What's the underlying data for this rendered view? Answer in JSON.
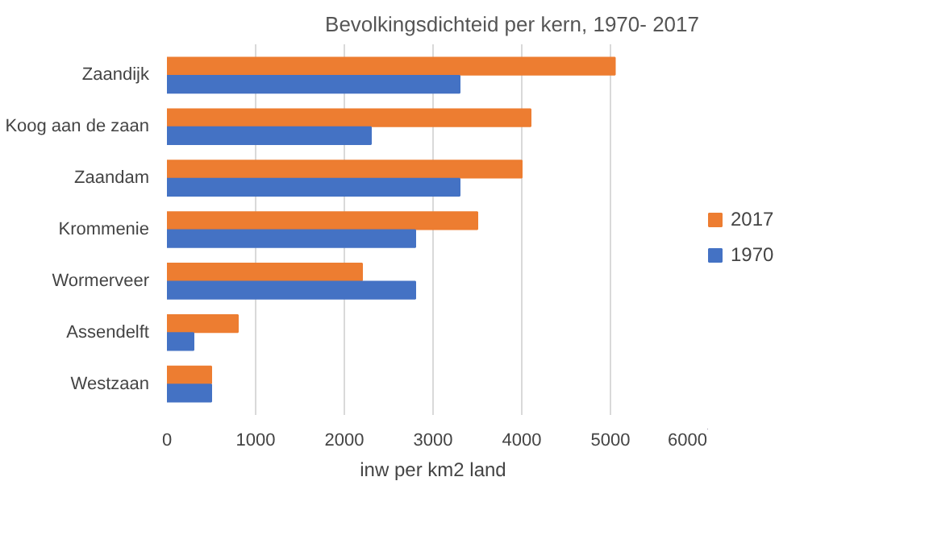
{
  "chart_data": {
    "type": "bar",
    "orientation": "horizontal",
    "title": "Bevolkingsdichteid per kern, 1970- 2017",
    "xlabel": "inw per km2 land",
    "categories": [
      "Zaandijk",
      "Koog aan de zaan",
      "Zaandam",
      "Krommenie",
      "Wormerveer",
      "Assendelft",
      "Westzaan"
    ],
    "series": [
      {
        "name": "2017",
        "color": "#ed7d31",
        "values": [
          5050,
          4100,
          4000,
          3500,
          2200,
          800,
          500
        ]
      },
      {
        "name": "1970",
        "color": "#4472c4",
        "values": [
          3300,
          2300,
          3300,
          2800,
          2800,
          300,
          500
        ]
      }
    ],
    "xlim": [
      0,
      6000
    ],
    "xticks": [
      0,
      1000,
      2000,
      3000,
      4000,
      5000,
      6000
    ],
    "grid": "x",
    "legend": "right"
  }
}
